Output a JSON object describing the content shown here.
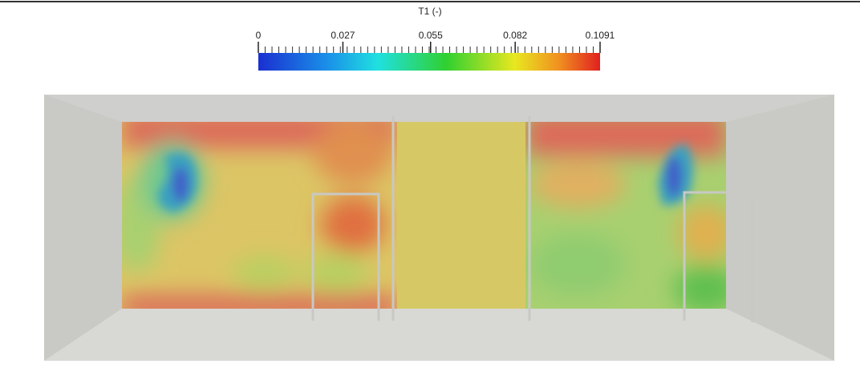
{
  "colorbar": {
    "title": "T1 (-)",
    "range": [
      0,
      0.1091
    ],
    "ticks": [
      0,
      0.027,
      0.055,
      0.082,
      0.1091
    ]
  }
}
